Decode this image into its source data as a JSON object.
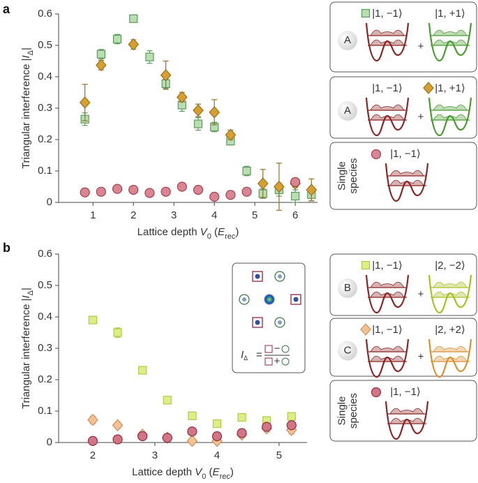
{
  "panel_labels": [
    "a",
    "b"
  ],
  "chart_data": [
    {
      "type": "scatter",
      "xlabel": [
        {
          "text": "Lattice depth "
        },
        {
          "text": "V",
          "italic": true
        },
        {
          "text": "0",
          "sub": true
        },
        {
          "text": " ("
        },
        {
          "text": "E",
          "italic": true
        },
        {
          "text": "rec",
          "sub": true
        },
        {
          "text": ")"
        }
      ],
      "ylabel": [
        {
          "text": "Triangular interference |"
        },
        {
          "text": "I",
          "italic": true
        },
        {
          "text": "Δ",
          "sub": true
        },
        {
          "text": "|"
        }
      ],
      "xlim": [
        0.15,
        6.55
      ],
      "xticks": [
        1,
        2,
        3,
        4,
        5,
        6
      ],
      "ylim": [
        0,
        0.6
      ],
      "yticks": [
        0,
        0.1,
        0.2,
        0.3,
        0.4,
        0.5,
        0.6
      ],
      "series": [
        {
          "marker": "square",
          "color": "#b8deb2",
          "edge": "#5c9a5c",
          "x": [
            0.8,
            1.2,
            1.6,
            2.0,
            2.4,
            2.8,
            3.2,
            3.6,
            4.0,
            4.4,
            4.8,
            5.2,
            5.6,
            6.0,
            6.4
          ],
          "values": [
            0.265,
            0.472,
            0.52,
            0.585,
            0.463,
            0.378,
            0.31,
            0.25,
            0.24,
            0.195,
            0.1,
            0.028,
            0.04,
            0.02,
            0.025
          ],
          "errors": [
            0.02,
            0.015,
            0.015,
            0.005,
            0.02,
            0.015,
            0.02,
            0.02,
            0.015,
            0.012,
            0.015,
            0.015,
            0.02,
            0.02,
            0.02
          ],
          "schematic": {
            "letter": "A",
            "states": [
              "|1, −1⟩",
              "|1, +1⟩"
            ],
            "plus": "+",
            "marker_at": 0,
            "well_colors": [
              "#8b2525",
              "#4a9a30"
            ]
          }
        },
        {
          "marker": "diamond",
          "color": "#d6a030",
          "edge": "#9a7020",
          "x": [
            0.8,
            1.2,
            2.0,
            2.8,
            3.2,
            3.6,
            4.0,
            4.4,
            5.2,
            5.6,
            6.0,
            6.4
          ],
          "values": [
            0.318,
            0.437,
            0.503,
            0.405,
            0.335,
            0.293,
            0.287,
            0.215,
            0.06,
            0.05,
            0.06,
            0.04
          ],
          "errors": [
            0.058,
            0.015,
            0.015,
            0.045,
            0.015,
            0.02,
            0.04,
            0.015,
            0.045,
            0.075,
            0.012,
            0.035
          ],
          "schematic": {
            "letter": "A",
            "states": [
              "|1, −1⟩",
              "|1, +1⟩"
            ],
            "plus": "+",
            "marker_at": 1,
            "well_colors": [
              "#8b2525",
              "#4a9a30"
            ]
          }
        },
        {
          "marker": "circle",
          "color": "#d98592",
          "edge": "#a04050",
          "x": [
            0.8,
            1.2,
            1.6,
            2.0,
            2.4,
            2.8,
            3.2,
            3.6,
            4.0,
            4.4,
            4.8,
            6.0
          ],
          "values": [
            0.032,
            0.034,
            0.043,
            0.04,
            0.03,
            0.034,
            0.05,
            0.04,
            0.018,
            0.024,
            0.034,
            0.065
          ],
          "schematic": {
            "label": [
              "Single",
              "species"
            ],
            "states": [
              "|1, −1⟩"
            ],
            "marker_at": 0,
            "well_colors": [
              "#8b2525"
            ]
          }
        }
      ]
    },
    {
      "type": "scatter",
      "xlabel": [
        {
          "text": "Lattice depth "
        },
        {
          "text": "V",
          "italic": true
        },
        {
          "text": "0",
          "sub": true
        },
        {
          "text": " ("
        },
        {
          "text": "E",
          "italic": true
        },
        {
          "text": "rec",
          "sub": true
        },
        {
          "text": ")"
        }
      ],
      "ylabel": [
        {
          "text": "Triangular interference |"
        },
        {
          "text": "I",
          "italic": true
        },
        {
          "text": "Δ",
          "sub": true
        },
        {
          "text": "|"
        }
      ],
      "xlim": [
        1.45,
        5.45
      ],
      "xticks": [
        2,
        3,
        4,
        5
      ],
      "ylim": [
        0,
        0.6
      ],
      "yticks": [
        0,
        0.1,
        0.2,
        0.3,
        0.4,
        0.5,
        0.6
      ],
      "inset": {
        "lhs": [
          {
            "text": "I",
            "italic": true
          },
          {
            "text": "Δ",
            "sub": true
          }
        ],
        "equals": "=",
        "numerator_op": "−",
        "denominator_op": "+"
      },
      "series": [
        {
          "marker": "square",
          "color": "#dcee88",
          "edge": "#b2c844",
          "x": [
            2.0,
            2.4,
            2.8,
            3.2,
            3.6,
            4.0,
            4.4,
            4.8,
            5.2
          ],
          "values": [
            0.39,
            0.35,
            0.23,
            0.135,
            0.085,
            0.06,
            0.08,
            0.07,
            0.083
          ],
          "errors": [
            0.012,
            0.015,
            0.008,
            0.005,
            0.005,
            0.005,
            0.005,
            0.005,
            0.008
          ],
          "schematic": {
            "letter": "B",
            "states": [
              "|1, −1⟩",
              "|2, −2⟩"
            ],
            "plus": "+",
            "marker_at": 0,
            "well_colors": [
              "#8b2525",
              "#a8c020"
            ]
          }
        },
        {
          "marker": "diamond",
          "color": "#f2c292",
          "edge": "#d09060",
          "x": [
            2.0,
            2.4,
            2.8,
            3.2,
            3.6,
            4.0,
            4.4,
            4.8,
            5.2
          ],
          "values": [
            0.072,
            0.055,
            0.025,
            0.015,
            0.005,
            0.005,
            0.025,
            0.045,
            0.04
          ],
          "errors": [
            0.012,
            0.01,
            0.01,
            0.008,
            0.008,
            0.008,
            0.01,
            0.012,
            0.012
          ],
          "schematic": {
            "letter": "C",
            "states": [
              "|1, −1⟩",
              "|2, +2⟩"
            ],
            "plus": "+",
            "marker_at": 0,
            "well_colors": [
              "#8b2525",
              "#d99030"
            ]
          }
        },
        {
          "marker": "circle",
          "color": "#d27585",
          "edge": "#903040",
          "x": [
            2.0,
            2.4,
            2.8,
            3.2,
            3.6,
            4.0,
            4.4,
            4.8,
            5.2
          ],
          "values": [
            0.005,
            0.01,
            0.02,
            0.015,
            0.035,
            0.02,
            0.03,
            0.05,
            0.055
          ],
          "schematic": {
            "label": [
              "Single",
              "species"
            ],
            "states": [
              "|1, −1⟩"
            ],
            "marker_at": 0,
            "well_colors": [
              "#8b2525"
            ]
          }
        }
      ]
    }
  ]
}
